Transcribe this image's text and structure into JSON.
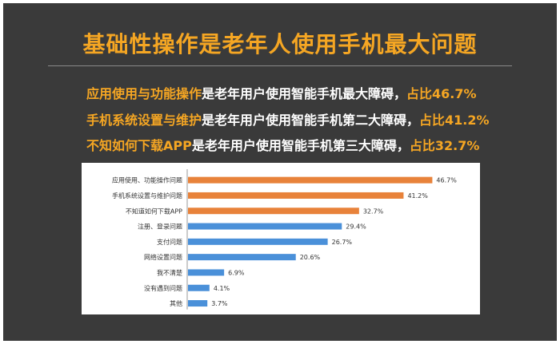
{
  "slide": {
    "title": "基础性操作是老年人使用手机最大问题",
    "highlights": [
      {
        "key": "应用使用与功能操作",
        "middle": "是老年用户使用智能手机最大障碍，",
        "stat": "占比46.7%"
      },
      {
        "key": "手机系统设置与维护",
        "middle": "是老年用户使用智能手机第二大障碍，",
        "stat": "占比41.2%"
      },
      {
        "key": "不知如何下载APP",
        "middle": "是老年用户使用智能手机第三大障碍，",
        "stat": "占比32.7%"
      }
    ]
  },
  "colors": {
    "background": "#3a3a3a",
    "accent": "#f5a623",
    "bar_orange": "#e8823a",
    "bar_blue": "#4a90d9"
  },
  "chart_data": {
    "type": "bar",
    "orientation": "horizontal",
    "categories": [
      "应用使用、功能操作问题",
      "手机系统设置与维护问题",
      "不知道如何下载APP",
      "注册、登录问题",
      "支付问题",
      "网络设置问题",
      "我不清楚",
      "没有遇到问题",
      "其他"
    ],
    "values": [
      46.7,
      41.2,
      32.7,
      29.4,
      26.7,
      20.6,
      6.9,
      4.1,
      3.7
    ],
    "data_labels": [
      "46.7%",
      "41.2%",
      "32.7%",
      "29.4%",
      "26.7%",
      "20.6%",
      "6.9%",
      "4.1%",
      "3.7%"
    ],
    "bar_colors": [
      "#e8823a",
      "#e8823a",
      "#e8823a",
      "#4a90d9",
      "#4a90d9",
      "#4a90d9",
      "#4a90d9",
      "#4a90d9",
      "#4a90d9"
    ],
    "xlim": [
      0,
      50
    ],
    "grid": false,
    "legend": false
  }
}
